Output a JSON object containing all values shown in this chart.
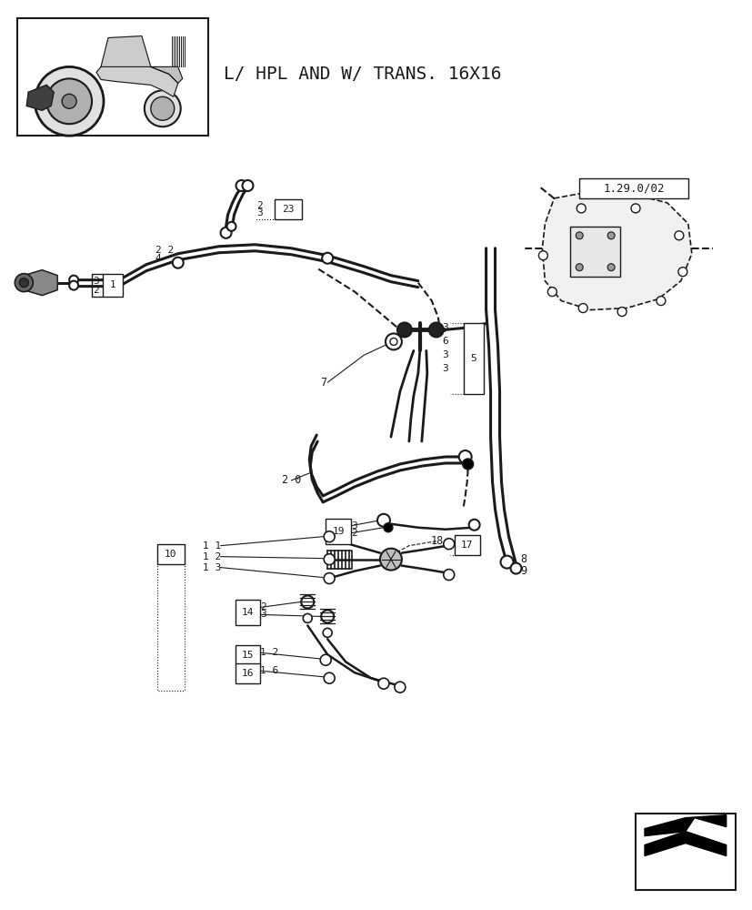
{
  "bg_color": "#ffffff",
  "line_color": "#1a1a1a",
  "title_text": "L/ HPL AND W/ TRANS. 16X16",
  "ref_box_text": "1.29.0/02",
  "figsize": [
    8.28,
    10.0
  ],
  "dpi": 100
}
